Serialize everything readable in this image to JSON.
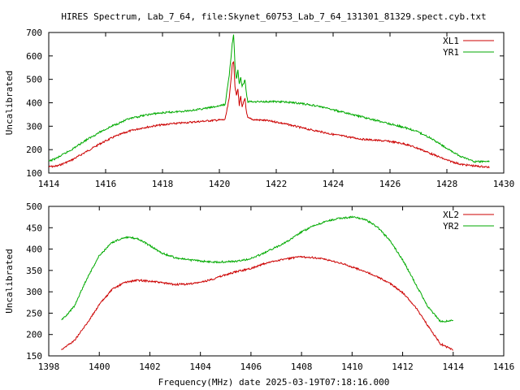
{
  "title": "HIRES Spectrum, Lab_7_64, file:Skynet_60753_Lab_7_64_131301_81329.spect.cyb.txt",
  "xlabel": "Frequency(MHz) date 2025-03-19T07:18:16.000",
  "colors": {
    "red": "#cc0000",
    "green": "#00aa00",
    "axis": "#000000"
  },
  "chart_data": [
    {
      "type": "line",
      "ylabel": "Uncalibrated",
      "xlim": [
        1414,
        1430
      ],
      "ylim": [
        100,
        700
      ],
      "xticks": [
        1414,
        1416,
        1418,
        1420,
        1422,
        1424,
        1426,
        1428,
        1430
      ],
      "yticks": [
        100,
        200,
        300,
        400,
        500,
        600,
        700
      ],
      "legend": "top-right",
      "grid": false,
      "series": [
        {
          "name": "XL1",
          "color": "#cc0000",
          "x": [
            1414.0,
            1414.3,
            1414.8,
            1415.3,
            1415.8,
            1416.3,
            1416.8,
            1417.3,
            1417.8,
            1418.3,
            1418.8,
            1419.3,
            1419.8,
            1420.2,
            1420.35,
            1420.45,
            1420.5,
            1420.55,
            1420.6,
            1420.65,
            1420.7,
            1420.75,
            1420.8,
            1420.85,
            1420.9,
            1420.95,
            1421.0,
            1421.2,
            1421.6,
            1422.0,
            1422.5,
            1423.0,
            1423.5,
            1424.0,
            1424.5,
            1425.0,
            1425.5,
            1426.0,
            1426.5,
            1427.0,
            1427.5,
            1428.0,
            1428.5,
            1429.0,
            1429.5
          ],
          "y": [
            127,
            130,
            155,
            190,
            225,
            255,
            278,
            293,
            303,
            310,
            315,
            320,
            325,
            328,
            420,
            560,
            580,
            470,
            430,
            460,
            390,
            430,
            380,
            400,
            420,
            360,
            335,
            328,
            325,
            318,
            305,
            290,
            278,
            265,
            255,
            245,
            240,
            235,
            225,
            205,
            180,
            155,
            137,
            130,
            125
          ]
        },
        {
          "name": "YR1",
          "color": "#00aa00",
          "x": [
            1414.0,
            1414.3,
            1414.8,
            1415.3,
            1415.8,
            1416.3,
            1416.8,
            1417.3,
            1417.8,
            1418.3,
            1418.8,
            1419.3,
            1419.8,
            1420.2,
            1420.35,
            1420.45,
            1420.5,
            1420.55,
            1420.6,
            1420.65,
            1420.7,
            1420.75,
            1420.8,
            1420.85,
            1420.9,
            1420.95,
            1421.0,
            1421.2,
            1421.6,
            1422.0,
            1422.5,
            1423.0,
            1423.5,
            1424.0,
            1424.5,
            1425.0,
            1425.5,
            1426.0,
            1426.5,
            1427.0,
            1427.5,
            1428.0,
            1428.5,
            1429.0,
            1429.5
          ],
          "y": [
            150,
            165,
            200,
            240,
            275,
            305,
            330,
            345,
            355,
            360,
            365,
            372,
            382,
            392,
            520,
            650,
            690,
            560,
            500,
            540,
            480,
            510,
            470,
            480,
            500,
            440,
            405,
            405,
            405,
            405,
            402,
            395,
            385,
            370,
            355,
            340,
            325,
            310,
            295,
            275,
            245,
            205,
            170,
            148,
            150
          ]
        }
      ]
    },
    {
      "type": "line",
      "ylabel": "Uncalibrated",
      "xlim": [
        1398,
        1416
      ],
      "ylim": [
        150,
        500
      ],
      "xticks": [
        1398,
        1400,
        1402,
        1404,
        1406,
        1408,
        1410,
        1412,
        1414,
        1416
      ],
      "yticks": [
        150,
        200,
        250,
        300,
        350,
        400,
        450,
        500
      ],
      "legend": "top-right",
      "grid": false,
      "series": [
        {
          "name": "XL2",
          "color": "#cc0000",
          "x": [
            1398.5,
            1399.0,
            1399.5,
            1400.0,
            1400.5,
            1401.0,
            1401.5,
            1402.0,
            1402.5,
            1403.0,
            1403.5,
            1404.0,
            1404.5,
            1405.0,
            1405.5,
            1406.0,
            1406.5,
            1407.0,
            1407.5,
            1408.0,
            1408.5,
            1409.0,
            1409.5,
            1410.0,
            1410.5,
            1411.0,
            1411.5,
            1412.0,
            1412.5,
            1413.0,
            1413.5,
            1414.0
          ],
          "y": [
            165,
            185,
            225,
            270,
            305,
            322,
            327,
            325,
            321,
            317,
            318,
            322,
            330,
            340,
            348,
            355,
            365,
            373,
            378,
            382,
            380,
            375,
            368,
            358,
            348,
            335,
            320,
            298,
            265,
            220,
            178,
            163
          ]
        },
        {
          "name": "YR2",
          "color": "#00aa00",
          "x": [
            1398.5,
            1399.0,
            1399.5,
            1400.0,
            1400.5,
            1401.0,
            1401.5,
            1402.0,
            1402.5,
            1403.0,
            1403.5,
            1404.0,
            1404.5,
            1405.0,
            1405.5,
            1406.0,
            1406.5,
            1407.0,
            1407.5,
            1408.0,
            1408.5,
            1409.0,
            1409.5,
            1410.0,
            1410.5,
            1411.0,
            1411.5,
            1412.0,
            1412.5,
            1413.0,
            1413.5,
            1414.0
          ],
          "y": [
            233,
            265,
            330,
            385,
            415,
            428,
            425,
            408,
            390,
            380,
            375,
            372,
            370,
            370,
            372,
            378,
            390,
            405,
            420,
            440,
            455,
            465,
            472,
            475,
            470,
            452,
            420,
            375,
            320,
            265,
            230,
            233
          ]
        }
      ]
    }
  ]
}
